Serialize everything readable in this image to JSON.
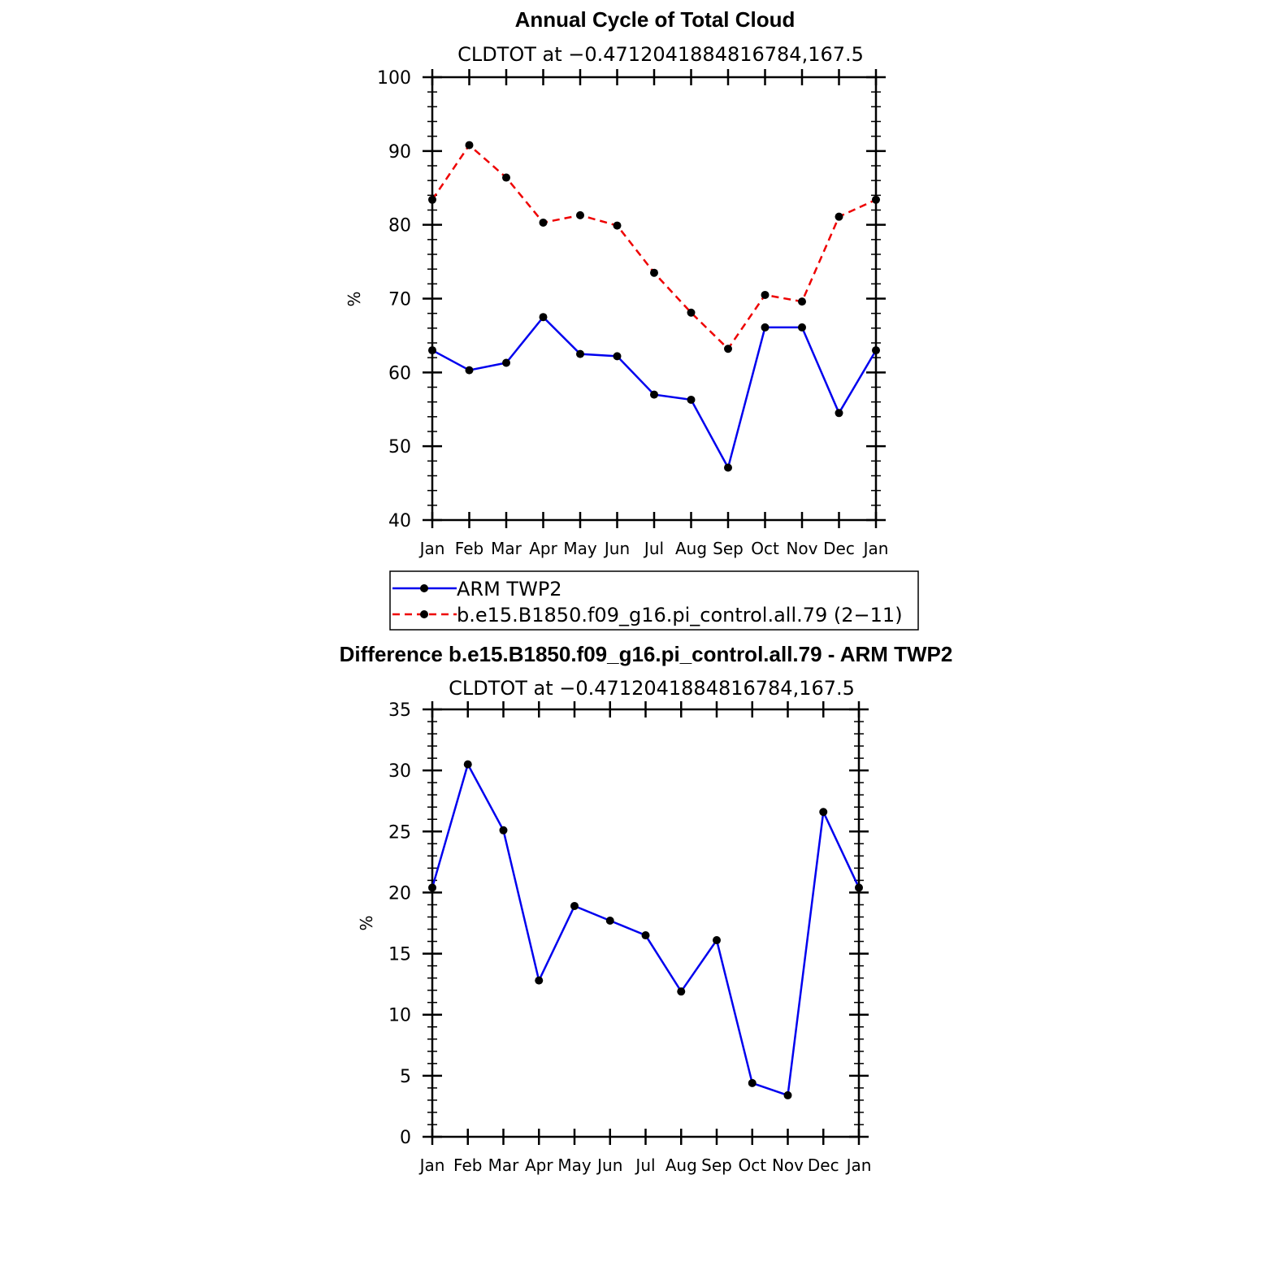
{
  "chart_data": [
    {
      "type": "line",
      "title": "Annual Cycle of Total Cloud",
      "subtitle": "CLDTOT at −0.4712041884816784,167.5",
      "xlabel": "",
      "ylabel": "%",
      "categories": [
        "Jan",
        "Feb",
        "Mar",
        "Apr",
        "May",
        "Jun",
        "Jul",
        "Aug",
        "Sep",
        "Oct",
        "Nov",
        "Dec",
        "Jan"
      ],
      "ylim": [
        40,
        100
      ],
      "yticks": [
        40,
        50,
        60,
        70,
        80,
        90,
        100
      ],
      "series": [
        {
          "name": "ARM TWP2",
          "color": "#0000ee",
          "dash": "solid",
          "values": [
            63.0,
            60.3,
            61.3,
            67.5,
            62.5,
            62.2,
            57.0,
            56.3,
            47.1,
            66.1,
            66.1,
            54.5,
            63.0
          ]
        },
        {
          "name": "b.e15.B1850.f09_g16.pi_control.all.79 (2−11)",
          "color": "#ee0000",
          "dash": "dashed",
          "values": [
            83.4,
            90.8,
            86.4,
            80.3,
            81.3,
            79.9,
            73.5,
            68.1,
            63.2,
            70.5,
            69.6,
            81.1,
            83.4
          ]
        }
      ],
      "legend": [
        "ARM TWP2",
        "b.e15.B1850.f09_g16.pi_control.all.79 (2−11)"
      ]
    },
    {
      "type": "line",
      "title": "Difference b.e15.B1850.f09_g16.pi_control.all.79 - ARM TWP2",
      "subtitle": "CLDTOT at −0.4712041884816784,167.5",
      "xlabel": "",
      "ylabel": "%",
      "categories": [
        "Jan",
        "Feb",
        "Mar",
        "Apr",
        "May",
        "Jun",
        "Jul",
        "Aug",
        "Sep",
        "Oct",
        "Nov",
        "Dec",
        "Jan"
      ],
      "ylim": [
        0,
        35
      ],
      "yticks": [
        0,
        5,
        10,
        15,
        20,
        25,
        30,
        35
      ],
      "series": [
        {
          "name": "Difference",
          "color": "#0000ee",
          "dash": "solid",
          "values": [
            20.4,
            30.5,
            25.1,
            12.8,
            18.9,
            17.7,
            16.5,
            11.9,
            16.1,
            4.4,
            3.4,
            26.6,
            20.4
          ]
        }
      ]
    }
  ]
}
